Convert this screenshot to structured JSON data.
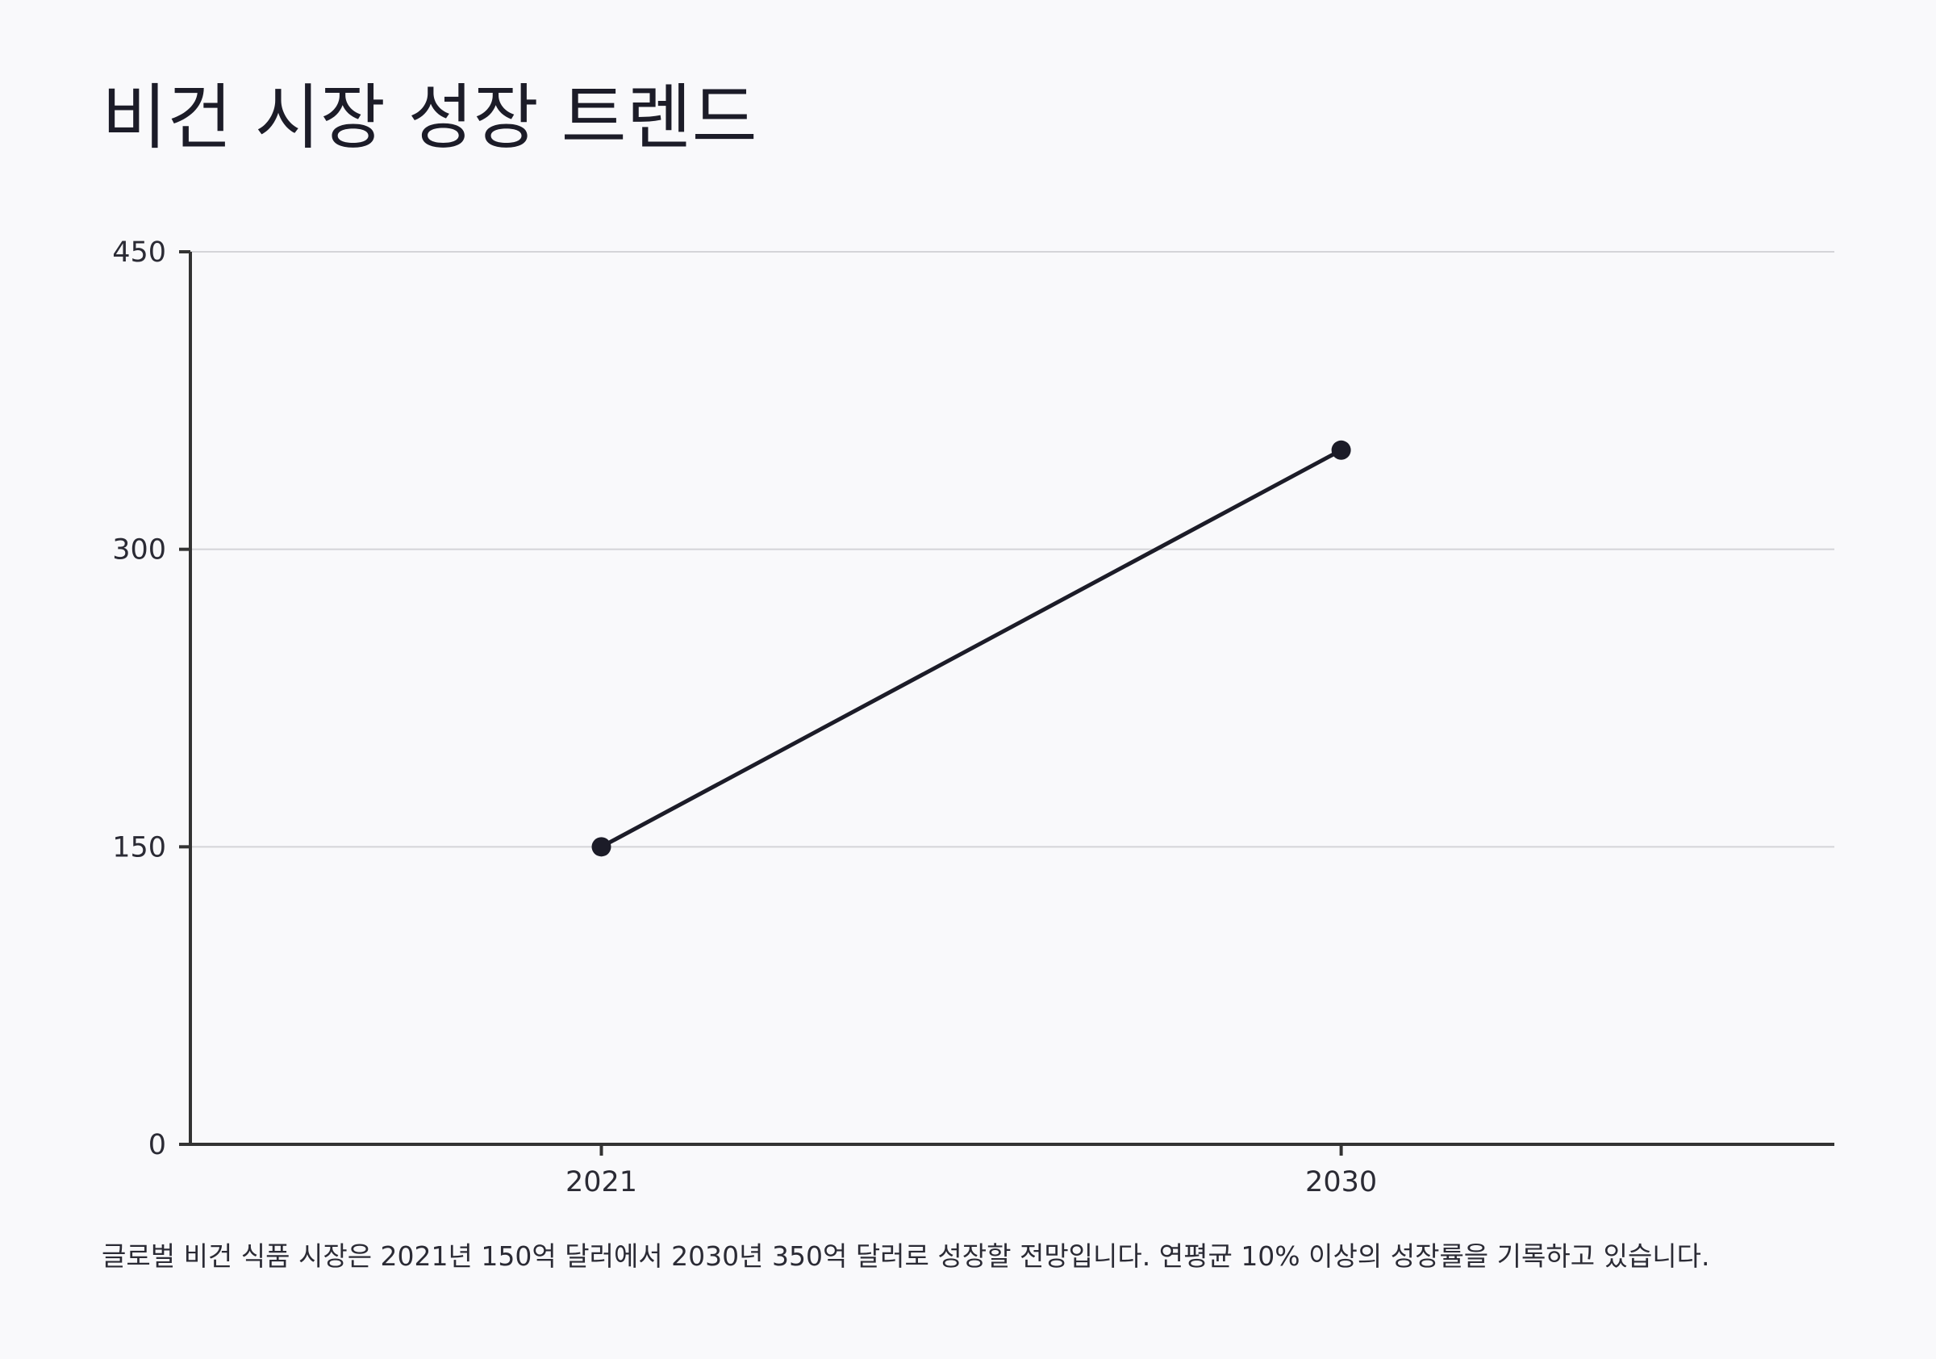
{
  "title": "비건 시장 성장 트렌드",
  "caption": "글로벌 비건 식품 시장은 2021년 150억 달러에서 2030년 350억 달러로 성장할 전망입니다. 연평균 10% 이상의 성장률을 기록하고 있습니다.",
  "colors": {
    "background": "#f9f9fb",
    "line": "#1c1c28",
    "axis": "#333333",
    "grid": "#d4d4d8",
    "text": "#2b2b35"
  },
  "chart_data": {
    "type": "line",
    "title": "비건 시장 성장 트렌드",
    "xlabel": "",
    "ylabel": "",
    "x": [
      "2021",
      "2030"
    ],
    "series": [
      {
        "values": [
          150,
          350
        ]
      }
    ],
    "ylim": [
      0,
      450
    ],
    "yticks": [
      "0",
      "150",
      "300",
      "450"
    ],
    "xlim": [
      2016,
      2036
    ],
    "grid": true,
    "legend": "none"
  }
}
